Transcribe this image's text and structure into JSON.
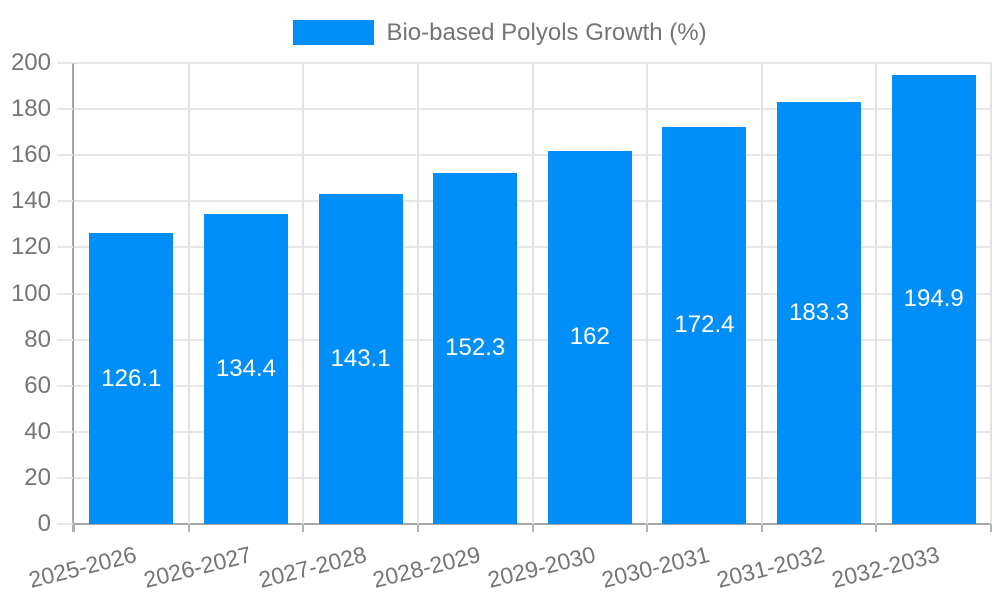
{
  "legend": {
    "label": "Bio-based Polyols Growth (%)"
  },
  "colors": {
    "accent": "#008ff8",
    "label_text": "#757575",
    "value_text": "#ffffff",
    "gridline": "#e6e6e6",
    "axis": "#a6a6a6"
  },
  "chart_data": {
    "type": "bar",
    "title": "",
    "xlabel": "",
    "ylabel": "",
    "categories": [
      "2025-2026",
      "2026-2027",
      "2027-2028",
      "2028-2029",
      "2029-2030",
      "2030-2031",
      "2031-2032",
      "2032-2033"
    ],
    "series": [
      {
        "name": "Bio-based Polyols Growth (%)",
        "values": [
          126.1,
          134.4,
          143.1,
          152.3,
          162,
          172.4,
          183.3,
          194.9
        ],
        "value_labels": [
          "126.1",
          "134.4",
          "143.1",
          "152.3",
          "162",
          "172.4",
          "183.3",
          "194.9"
        ],
        "color": "#008ff8"
      }
    ],
    "ylim": [
      0,
      200
    ],
    "yticks": [
      0,
      20,
      40,
      60,
      80,
      100,
      120,
      140,
      160,
      180,
      200
    ],
    "grid": true,
    "legend_position": "top",
    "value_labels_inside_bars": true,
    "xtick_rotation_deg": -14
  }
}
